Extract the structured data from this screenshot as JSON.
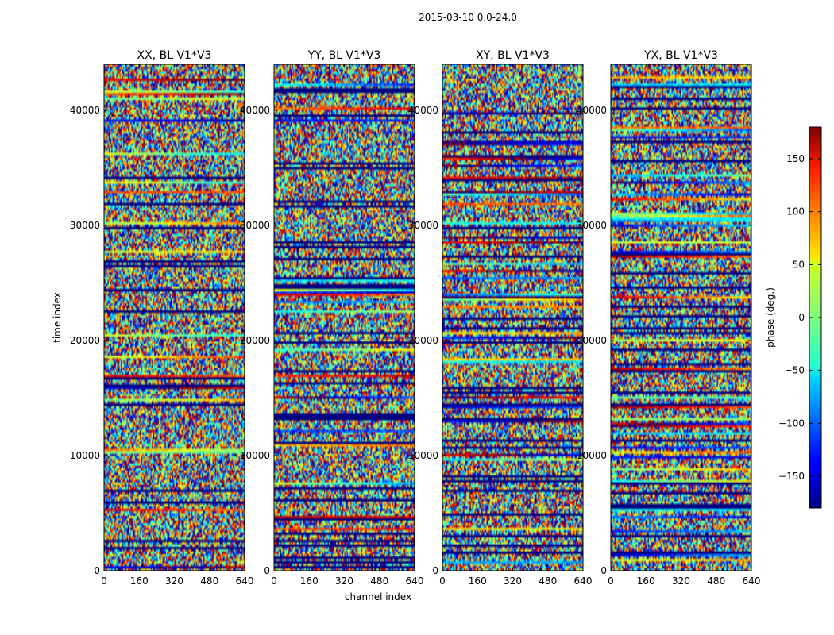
{
  "figure": {
    "suptitle": "2015-03-10 0.0-24.0",
    "xlabel": "channel index",
    "ylabel": "time index"
  },
  "colorbar": {
    "label": "phase (deg.)",
    "ticks": [
      -150,
      -100,
      -50,
      0,
      50,
      100,
      150
    ],
    "tick_labels": [
      "−150",
      "−100",
      "−50",
      "0",
      "50",
      "100",
      "150"
    ],
    "range": [
      -180,
      180
    ],
    "colormap": "jet"
  },
  "chart_data": {
    "type": "heatmap",
    "x_ticks": [
      0,
      160,
      320,
      480,
      640
    ],
    "x_tick_labels": [
      "0",
      "160",
      "320",
      "480",
      "640"
    ],
    "y_ticks": [
      0,
      10000,
      20000,
      30000,
      40000
    ],
    "y_tick_labels": [
      "0",
      "10000",
      "20000",
      "30000",
      "40000"
    ],
    "xlim": [
      0,
      640
    ],
    "ylim": [
      0,
      44000
    ],
    "zlim": [
      -180,
      180
    ],
    "panels": [
      {
        "title": "XX, BL V1*V3"
      },
      {
        "title": "YY, BL V1*V3"
      },
      {
        "title": "XY, BL V1*V3"
      },
      {
        "title": "YX, BL V1*V3"
      }
    ]
  }
}
